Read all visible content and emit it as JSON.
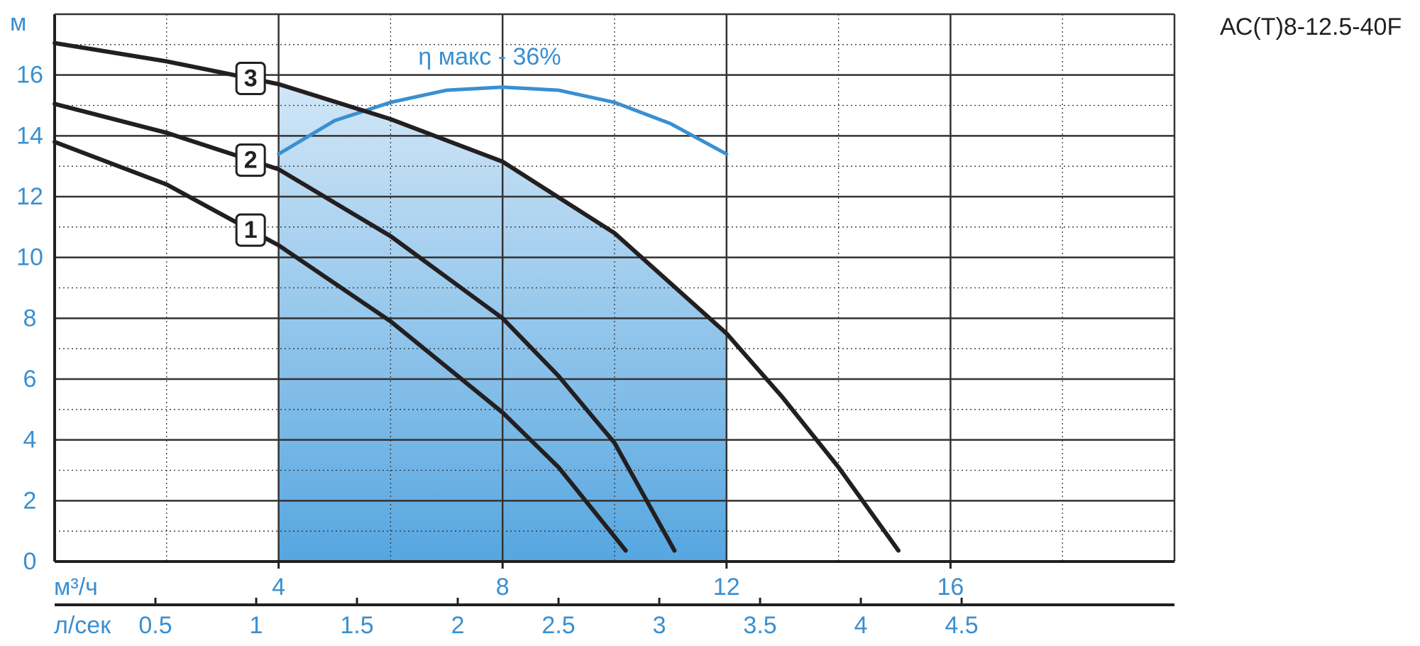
{
  "chart_data": {
    "type": "line",
    "title": "АС(Т)8-12.5-40F",
    "y_label": "м",
    "x_label": "м³/ч",
    "x2_label": "л/сек",
    "annotation": "η макс - 36%",
    "xlim": [
      0,
      20
    ],
    "ylim": [
      0,
      18
    ],
    "xticks": [
      4,
      8,
      12,
      16
    ],
    "yticks": [
      0,
      2,
      4,
      6,
      8,
      10,
      12,
      14,
      16
    ],
    "x_minor_grid": [
      2,
      6,
      10,
      14,
      18
    ],
    "y_minor_grid": [
      1,
      3,
      5,
      7,
      9,
      11,
      13,
      15,
      17
    ],
    "x2lim": [
      0,
      5.556
    ],
    "x2ticks": [
      0.5,
      1,
      1.5,
      2,
      2.5,
      3,
      3.5,
      4,
      4.5
    ],
    "grid": true,
    "highlight_xrange": [
      4,
      12
    ],
    "series": [
      {
        "name": "1",
        "color": "#231f20",
        "x": [
          0,
          2,
          4,
          6,
          8,
          9,
          10.2
        ],
        "values": [
          13.8,
          12.4,
          10.4,
          7.9,
          4.9,
          3.1,
          0.36
        ]
      },
      {
        "name": "2",
        "color": "#231f20",
        "x": [
          0,
          2,
          4,
          6,
          8,
          9,
          10,
          11.07
        ],
        "values": [
          15.05,
          14.1,
          12.9,
          10.7,
          8.0,
          6.1,
          3.9,
          0.36
        ]
      },
      {
        "name": "3",
        "color": "#231f20",
        "x": [
          0,
          2,
          4,
          6,
          8,
          10,
          12,
          13,
          14,
          15.07
        ],
        "values": [
          17.05,
          16.45,
          15.7,
          14.55,
          13.15,
          10.8,
          7.5,
          5.4,
          3.1,
          0.36
        ]
      }
    ],
    "efficiency": {
      "color": "#3a8fd0",
      "x": [
        4,
        5,
        6,
        7,
        8,
        9,
        10,
        11,
        12
      ],
      "values": [
        13.4,
        14.5,
        15.1,
        15.5,
        15.6,
        15.5,
        15.1,
        14.4,
        13.4
      ]
    }
  }
}
